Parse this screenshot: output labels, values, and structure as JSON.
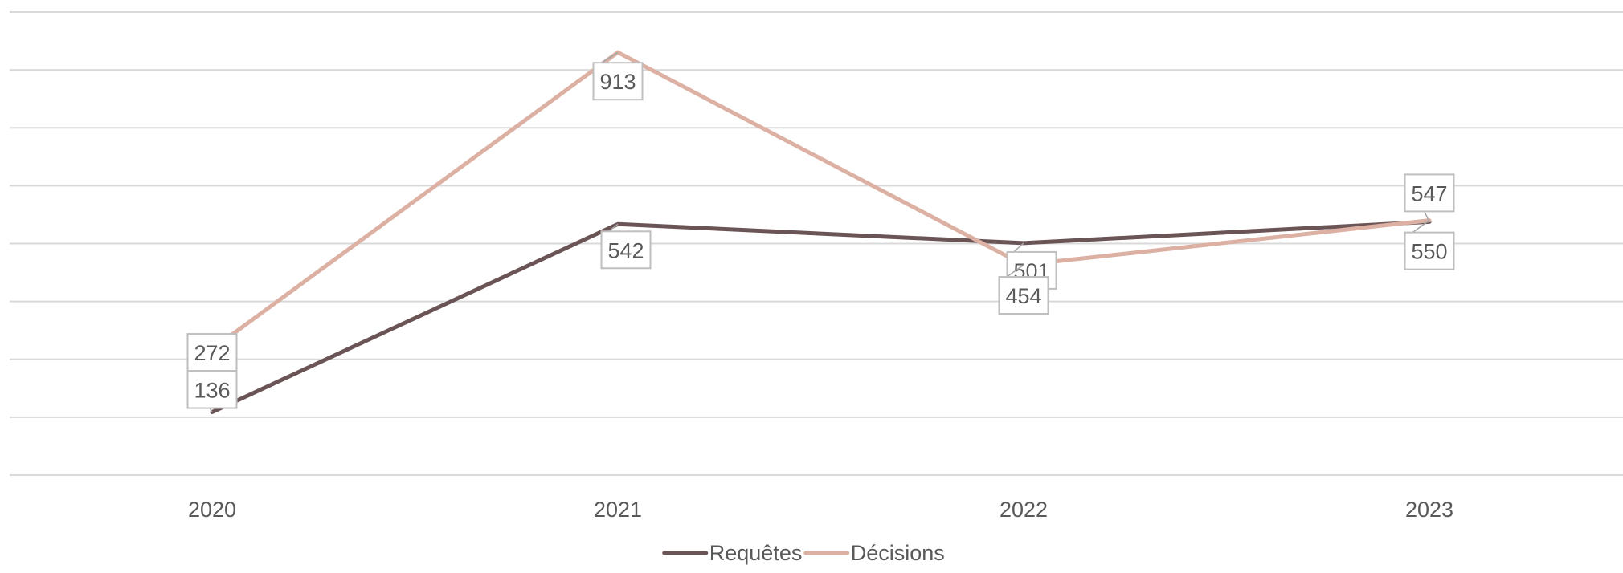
{
  "chart_data": {
    "type": "line",
    "title": "",
    "xlabel": "",
    "ylabel": "",
    "categories": [
      "2020",
      "2021",
      "2022",
      "2023"
    ],
    "ylim": [
      0,
      1000
    ],
    "y_axis_labels_shown": false,
    "grid": true,
    "legend_position": "bottom",
    "series": [
      {
        "name": "Requêtes",
        "color": "#6b5456",
        "values": [
          136,
          542,
          501,
          547
        ]
      },
      {
        "name": "Décisions",
        "color": "#dcb0a2",
        "values": [
          272,
          913,
          454,
          550
        ]
      }
    ]
  }
}
